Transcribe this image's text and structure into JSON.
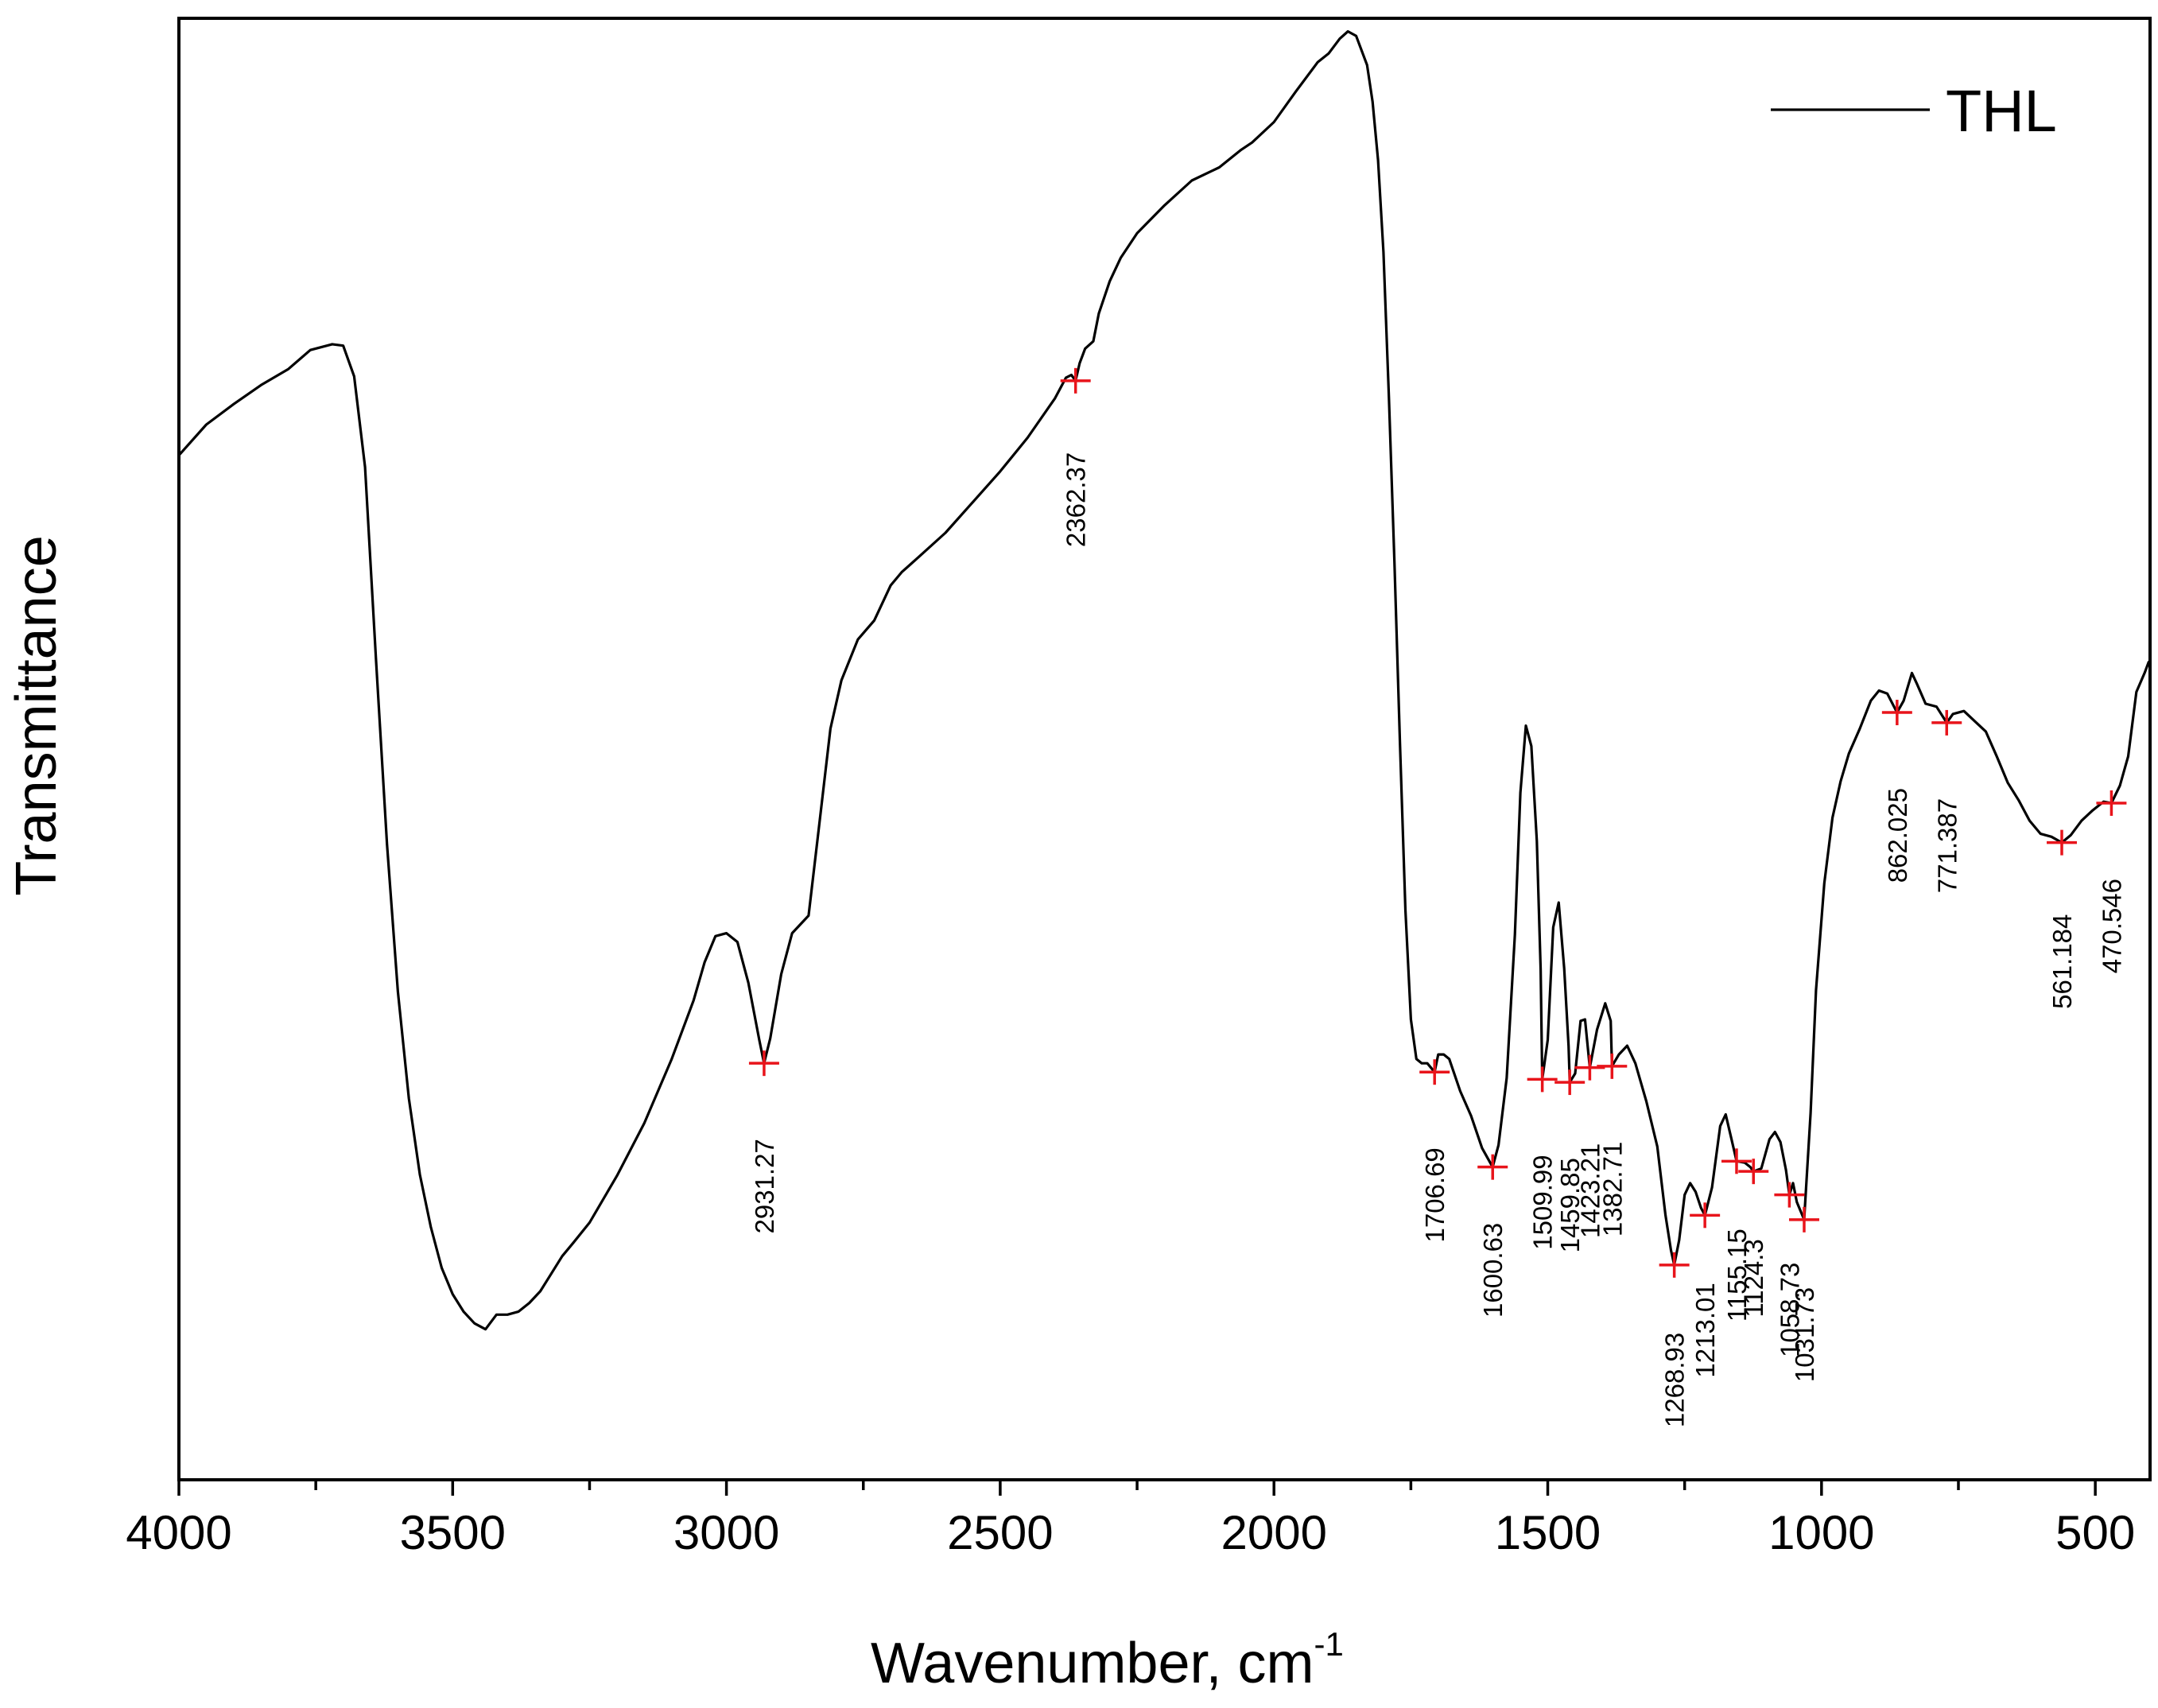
{
  "chart_data": {
    "type": "line",
    "title": "",
    "xlabel": "Wavenumber, cm",
    "xlabel_superscript": "-1",
    "ylabel": "Transmittance",
    "xlim": [
      4000,
      400
    ],
    "ylim": [
      0,
      100
    ],
    "x_axis_reversed": true,
    "grid": false,
    "legend": {
      "position": "top-right",
      "entries": [
        "THL"
      ]
    },
    "x_ticks": [
      4000,
      3500,
      3000,
      2500,
      2000,
      1500,
      1000,
      500
    ],
    "x_tick_labels": [
      "4000",
      "3500",
      "3000",
      "2500",
      "2000",
      "1500",
      "1000",
      "500"
    ],
    "y_ticks_visible": false,
    "series": [
      {
        "name": "THL",
        "color": "#000000",
        "points": [
          [
            4000,
            70.1
          ],
          [
            3950,
            72.2
          ],
          [
            3900,
            73.6
          ],
          [
            3850,
            74.9
          ],
          [
            3800,
            76.0
          ],
          [
            3760,
            77.3
          ],
          [
            3720,
            77.7
          ],
          [
            3700,
            77.6
          ],
          [
            3680,
            75.5
          ],
          [
            3660,
            69.3
          ],
          [
            3640,
            56.1
          ],
          [
            3620,
            43.5
          ],
          [
            3600,
            33.4
          ],
          [
            3580,
            26.1
          ],
          [
            3560,
            20.9
          ],
          [
            3540,
            17.3
          ],
          [
            3520,
            14.5
          ],
          [
            3500,
            12.7
          ],
          [
            3480,
            11.5
          ],
          [
            3460,
            10.7
          ],
          [
            3440,
            10.3
          ],
          [
            3420,
            11.3
          ],
          [
            3400,
            11.3
          ],
          [
            3380,
            11.5
          ],
          [
            3360,
            12.1
          ],
          [
            3340,
            12.9
          ],
          [
            3320,
            14.1
          ],
          [
            3300,
            15.3
          ],
          [
            3280,
            16.2
          ],
          [
            3250,
            17.6
          ],
          [
            3200,
            20.8
          ],
          [
            3150,
            24.4
          ],
          [
            3100,
            28.8
          ],
          [
            3060,
            32.8
          ],
          [
            3040,
            35.4
          ],
          [
            3020,
            37.2
          ],
          [
            3000,
            37.4
          ],
          [
            2980,
            36.8
          ],
          [
            2960,
            34.0
          ],
          [
            2940,
            30.1
          ],
          [
            2931.27,
            28.5
          ],
          [
            2920,
            30.2
          ],
          [
            2900,
            34.6
          ],
          [
            2880,
            37.4
          ],
          [
            2860,
            38.2
          ],
          [
            2850,
            38.6
          ],
          [
            2830,
            45.0
          ],
          [
            2810,
            51.4
          ],
          [
            2790,
            54.7
          ],
          [
            2760,
            57.5
          ],
          [
            2730,
            58.8
          ],
          [
            2700,
            61.2
          ],
          [
            2680,
            62.1
          ],
          [
            2650,
            63.1
          ],
          [
            2600,
            64.8
          ],
          [
            2550,
            66.9
          ],
          [
            2500,
            69.0
          ],
          [
            2450,
            71.3
          ],
          [
            2400,
            74.0
          ],
          [
            2380,
            75.4
          ],
          [
            2370,
            75.6
          ],
          [
            2362.37,
            75.2
          ],
          [
            2355,
            76.4
          ],
          [
            2345,
            77.4
          ],
          [
            2330,
            77.9
          ],
          [
            2320,
            79.8
          ],
          [
            2300,
            82.0
          ],
          [
            2280,
            83.6
          ],
          [
            2250,
            85.3
          ],
          [
            2200,
            87.2
          ],
          [
            2150,
            88.9
          ],
          [
            2100,
            89.8
          ],
          [
            2060,
            91.0
          ],
          [
            2040,
            91.5
          ],
          [
            2000,
            92.9
          ],
          [
            1960,
            95.0
          ],
          [
            1920,
            97.0
          ],
          [
            1900,
            97.6
          ],
          [
            1880,
            98.6
          ],
          [
            1865,
            99.1
          ],
          [
            1850,
            98.8
          ],
          [
            1830,
            96.8
          ],
          [
            1820,
            94.3
          ],
          [
            1810,
            90.3
          ],
          [
            1800,
            84.0
          ],
          [
            1790,
            74.0
          ],
          [
            1780,
            62.8
          ],
          [
            1770,
            50.5
          ],
          [
            1760,
            39.0
          ],
          [
            1750,
            31.5
          ],
          [
            1740,
            28.8
          ],
          [
            1730,
            28.5
          ],
          [
            1720,
            28.5
          ],
          [
            1706.69,
            27.9
          ],
          [
            1700,
            29.1
          ],
          [
            1690,
            29.1
          ],
          [
            1680,
            28.8
          ],
          [
            1660,
            26.6
          ],
          [
            1640,
            24.9
          ],
          [
            1620,
            22.7
          ],
          [
            1600.63,
            21.4
          ],
          [
            1590,
            22.9
          ],
          [
            1575,
            27.5
          ],
          [
            1560,
            37.3
          ],
          [
            1550,
            47.0
          ],
          [
            1540,
            51.6
          ],
          [
            1530,
            50.2
          ],
          [
            1520,
            43.7
          ],
          [
            1513,
            34.9
          ],
          [
            1509.99,
            27.4
          ],
          [
            1500,
            30.1
          ],
          [
            1490,
            37.8
          ],
          [
            1480,
            39.5
          ],
          [
            1470,
            35.0
          ],
          [
            1462,
            29.7
          ],
          [
            1459.85,
            27.2
          ],
          [
            1450,
            27.8
          ],
          [
            1440,
            31.4
          ],
          [
            1432,
            31.5
          ],
          [
            1423.21,
            28.2
          ],
          [
            1410,
            30.8
          ],
          [
            1395,
            32.6
          ],
          [
            1385,
            31.4
          ],
          [
            1382.71,
            28.3
          ],
          [
            1370,
            29.1
          ],
          [
            1355,
            29.7
          ],
          [
            1340,
            28.5
          ],
          [
            1320,
            25.9
          ],
          [
            1300,
            22.8
          ],
          [
            1285,
            18.1
          ],
          [
            1275,
            15.7
          ],
          [
            1268.93,
            14.7
          ],
          [
            1260,
            16.4
          ],
          [
            1250,
            19.5
          ],
          [
            1240,
            20.3
          ],
          [
            1230,
            19.7
          ],
          [
            1220,
            18.6
          ],
          [
            1213.01,
            18.1
          ],
          [
            1200,
            20.0
          ],
          [
            1185,
            24.2
          ],
          [
            1175,
            25.0
          ],
          [
            1165,
            23.4
          ],
          [
            1155.15,
            21.8
          ],
          [
            1140,
            21.7
          ],
          [
            1130,
            21.4
          ],
          [
            1124.3,
            21.1
          ],
          [
            1110,
            21.3
          ],
          [
            1095,
            23.3
          ],
          [
            1085,
            23.8
          ],
          [
            1075,
            23.1
          ],
          [
            1065,
            21.2
          ],
          [
            1058.73,
            19.5
          ],
          [
            1052,
            20.3
          ],
          [
            1045,
            19.0
          ],
          [
            1031.73,
            17.8
          ],
          [
            1020,
            25.1
          ],
          [
            1010,
            33.5
          ],
          [
            995,
            40.8
          ],
          [
            980,
            45.3
          ],
          [
            965,
            47.8
          ],
          [
            950,
            49.7
          ],
          [
            930,
            51.4
          ],
          [
            910,
            53.3
          ],
          [
            895,
            54.0
          ],
          [
            880,
            53.8
          ],
          [
            862.025,
            52.5
          ],
          [
            850,
            53.3
          ],
          [
            835,
            55.2
          ],
          [
            825,
            54.4
          ],
          [
            810,
            53.1
          ],
          [
            790,
            52.9
          ],
          [
            771.387,
            51.8
          ],
          [
            760,
            52.4
          ],
          [
            740,
            52.6
          ],
          [
            720,
            51.9
          ],
          [
            700,
            51.2
          ],
          [
            680,
            49.5
          ],
          [
            660,
            47.7
          ],
          [
            640,
            46.5
          ],
          [
            620,
            45.1
          ],
          [
            600,
            44.2
          ],
          [
            580,
            44.0
          ],
          [
            561.184,
            43.6
          ],
          [
            545,
            44.1
          ],
          [
            525,
            45.1
          ],
          [
            505,
            45.8
          ],
          [
            485,
            46.4
          ],
          [
            470.546,
            46.3
          ],
          [
            455,
            47.5
          ],
          [
            440,
            49.5
          ],
          [
            425,
            53.9
          ],
          [
            410,
            55.2
          ],
          [
            402,
            56.0
          ]
        ]
      }
    ],
    "annotations": [
      {
        "x": 2931.27,
        "label": "2931.27"
      },
      {
        "x": 2362.37,
        "label": "2362.37"
      },
      {
        "x": 1706.69,
        "label": "1706.69"
      },
      {
        "x": 1600.63,
        "label": "1600.63"
      },
      {
        "x": 1509.99,
        "label": "1509.99"
      },
      {
        "x": 1459.85,
        "label": "1459.85"
      },
      {
        "x": 1423.21,
        "label": "1423.21"
      },
      {
        "x": 1382.71,
        "label": "1382.71"
      },
      {
        "x": 1268.93,
        "label": "1268.93"
      },
      {
        "x": 1213.01,
        "label": "1213.01"
      },
      {
        "x": 1155.15,
        "label": "1155.15"
      },
      {
        "x": 1124.3,
        "label": "1124.3"
      },
      {
        "x": 1058.73,
        "label": "1058.73"
      },
      {
        "x": 1031.73,
        "label": "1031.73"
      },
      {
        "x": 862.025,
        "label": "862.025"
      },
      {
        "x": 771.387,
        "label": "771.387"
      },
      {
        "x": 561.184,
        "label": "561.184"
      },
      {
        "x": 470.546,
        "label": "470.546"
      }
    ],
    "marker_color": "#e8141b"
  }
}
